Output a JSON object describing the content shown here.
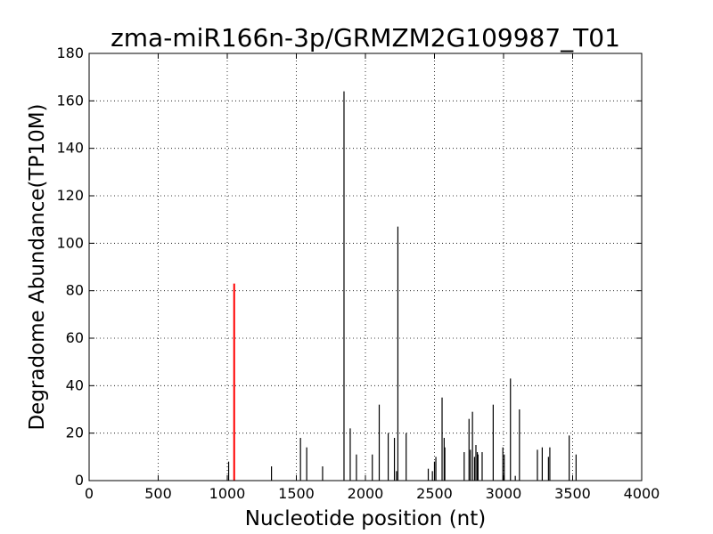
{
  "chart_data": {
    "type": "bar",
    "title": "zma-miR166n-3p/GRMZM2G109987_T01",
    "xlabel": "Nucleotide position (nt)",
    "ylabel": "Degradome Abundance(TP10M)",
    "xlim": [
      0,
      4000
    ],
    "ylim": [
      0,
      180
    ],
    "xticks": [
      0,
      500,
      1000,
      1500,
      2000,
      2500,
      3000,
      3500,
      4000
    ],
    "yticks": [
      0,
      20,
      40,
      60,
      80,
      100,
      120,
      140,
      160,
      180
    ],
    "grid": true,
    "series": [
      {
        "color": "#000000",
        "x": [
          1010,
          1320,
          1530,
          1575,
          1690,
          1845,
          1890,
          1935,
          2050,
          2100,
          2165,
          2210,
          2225,
          2235,
          2295,
          2455,
          2485,
          2500,
          2510,
          2555,
          2570,
          2575,
          2715,
          2750,
          2760,
          2775,
          2790,
          2800,
          2810,
          2815,
          2845,
          2925,
          2995,
          3005,
          3050,
          3085,
          3115,
          3245,
          3280,
          3325,
          3335,
          3475,
          3525
        ],
        "values": [
          8,
          6,
          18,
          14,
          6,
          164,
          22,
          11,
          11,
          32,
          20,
          18,
          4,
          107,
          20,
          5,
          4,
          8,
          10,
          35,
          18,
          14,
          12,
          26,
          13,
          29,
          10,
          15,
          12,
          11,
          12,
          32,
          14,
          11,
          43,
          2,
          30,
          13,
          14,
          10,
          14,
          19,
          11
        ]
      },
      {
        "color": "#ff0000",
        "x": [
          1050
        ],
        "values": [
          83
        ]
      }
    ]
  }
}
